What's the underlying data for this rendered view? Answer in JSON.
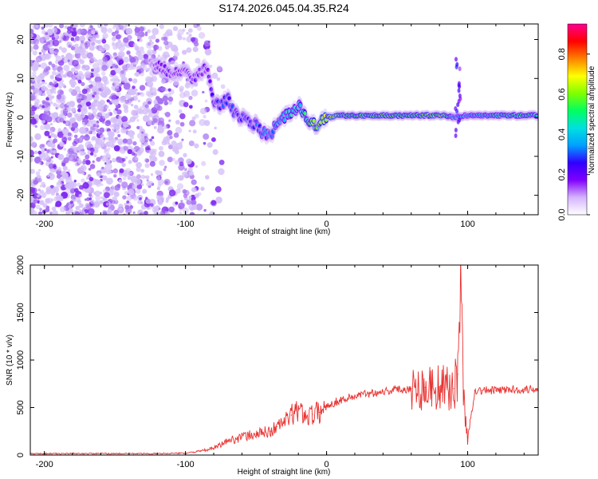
{
  "title": "S174.2026.045.04.35.R24",
  "chart_data": [
    {
      "type": "heatmap",
      "xlabel": "Height of straight line (km)",
      "ylabel": "Frequency (Hz)",
      "xlim": [
        -210,
        150
      ],
      "ylim": [
        -25,
        24
      ],
      "xticks": [
        -200,
        -100,
        0,
        100
      ],
      "xtick_labels": [
        "-200",
        "-100",
        "0",
        "100"
      ],
      "yticks": [
        -20,
        -10,
        0,
        10,
        20
      ],
      "ytick_labels": [
        "-20",
        "-10",
        "0",
        "10",
        "20"
      ],
      "ridge": {
        "x": [
          -125,
          -117,
          -110,
          -100,
          -95,
          -85,
          -80,
          -75,
          -70,
          -65,
          -60,
          -55,
          -50,
          -45,
          -40,
          -35,
          -30,
          -25,
          -20,
          -15,
          -10,
          -5,
          0,
          10,
          30,
          50,
          70,
          85,
          90,
          95,
          100,
          120,
          150
        ],
        "y": [
          14,
          13,
          11,
          12,
          10,
          13,
          4,
          3,
          5,
          1,
          0,
          -1,
          -2,
          -4,
          -5,
          -1,
          0,
          1,
          3,
          0,
          -2,
          -1.5,
          0,
          0.5,
          0.5,
          0.5,
          0.5,
          0.5,
          0,
          0.3,
          0.5,
          0.5,
          0.5
        ],
        "amplitude": [
          0.15,
          0.2,
          0.2,
          0.2,
          0.2,
          0.2,
          0.25,
          0.3,
          0.3,
          0.3,
          0.3,
          0.3,
          0.3,
          0.35,
          0.35,
          0.4,
          0.45,
          0.5,
          0.5,
          0.55,
          0.7,
          0.8,
          0.75,
          0.6,
          0.6,
          0.6,
          0.6,
          0.7,
          0.3,
          0.45,
          0.4,
          0.5,
          0.55
        ]
      },
      "colorbar": {
        "label": "Normalized spectral amplitude",
        "range": [
          0.0,
          0.95
        ],
        "ticks": [
          0.0,
          0.2,
          0.4,
          0.6,
          0.8
        ],
        "tick_labels": [
          "0.0",
          "0.2",
          "0.4",
          "0.6",
          "0.8"
        ],
        "stops": [
          "#ffffff",
          "#d6b4ff",
          "#8000ff",
          "#3000ff",
          "#00a0ff",
          "#00e0e0",
          "#00ff60",
          "#80ff00",
          "#ffff00",
          "#ff8000",
          "#ff0000",
          "#ff0090"
        ]
      }
    },
    {
      "type": "line",
      "xlabel": "Height of straight line (km)",
      "ylabel": "SNR (10 * v/v)",
      "xlim": [
        -210,
        150
      ],
      "ylim": [
        0,
        2000
      ],
      "xticks": [
        -200,
        -100,
        0,
        100
      ],
      "xtick_labels": [
        "-200",
        "-100",
        "0",
        "100"
      ],
      "yticks": [
        0,
        500,
        1000,
        1500,
        2000
      ],
      "ytick_labels": [
        "0",
        "500",
        "1000",
        "1500",
        "2000"
      ],
      "series": [
        {
          "name": "SNR",
          "color": "#e8302e",
          "x": [
            -210,
            -180,
            -150,
            -120,
            -100,
            -90,
            -80,
            -70,
            -60,
            -50,
            -40,
            -35,
            -30,
            -25,
            -20,
            -15,
            -10,
            -5,
            0,
            10,
            20,
            30,
            40,
            50,
            60,
            70,
            80,
            85,
            90,
            93,
            95,
            97,
            100,
            105,
            110,
            120,
            130,
            140,
            150
          ],
          "y": [
            15,
            15,
            15,
            15,
            20,
            40,
            70,
            150,
            190,
            220,
            250,
            300,
            350,
            420,
            470,
            420,
            430,
            450,
            520,
            580,
            620,
            650,
            670,
            690,
            700,
            710,
            720,
            690,
            700,
            850,
            1900,
            650,
            150,
            680,
            680,
            680,
            690,
            690,
            700
          ]
        }
      ]
    }
  ]
}
